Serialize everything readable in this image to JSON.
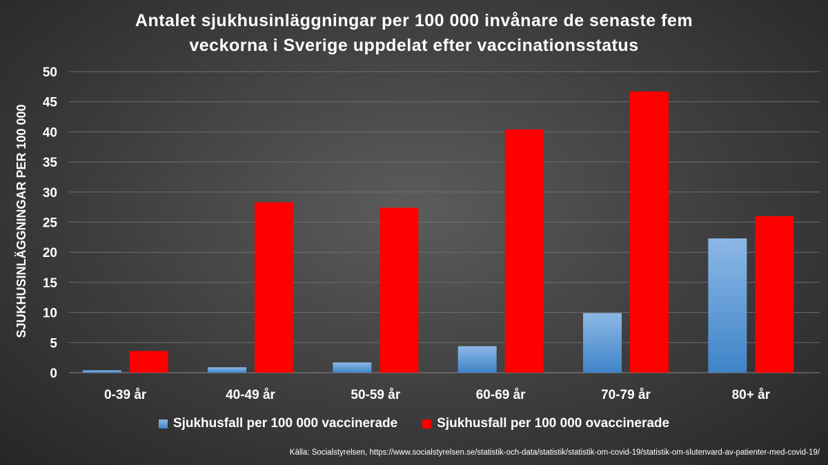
{
  "chart_data": {
    "type": "bar",
    "title_lines": [
      "Antalet sjukhusinläggningar per 100 000 invånare de senaste fem",
      "veckorna i Sverige uppdelat efter vaccinationsstatus"
    ],
    "ylabel": "SJUKHUSINLÄGGNINGAR PER 100 000",
    "xlabel": "",
    "ylim": [
      0,
      50
    ],
    "yticks": [
      "0",
      "5",
      "10",
      "15",
      "20",
      "25",
      "30",
      "35",
      "40",
      "45",
      "50"
    ],
    "grid": true,
    "legend_position": "bottom",
    "categories": [
      "0-39 år",
      "40-49 år",
      "50-59 år",
      "60-69 år",
      "70-79 år",
      "80+ år"
    ],
    "series": [
      {
        "name": "Sjukhusfall per 100 000 vaccinerade",
        "color": "#5b9bd5",
        "values": [
          0.4,
          0.9,
          1.7,
          4.4,
          9.9,
          22.3
        ]
      },
      {
        "name": "Sjukhusfall per 100 000 ovaccinerade",
        "color": "#ff0000",
        "values": [
          3.6,
          28.3,
          27.4,
          40.4,
          46.7,
          26.0
        ]
      }
    ],
    "source": "Källa: Socialstyrelsen,  https://www.socialstyrelsen.se/statistik-och-data/statistik/statistik-om-covid-19/statistik-om-slutenvard-av-patienter-med-covid-19/"
  }
}
